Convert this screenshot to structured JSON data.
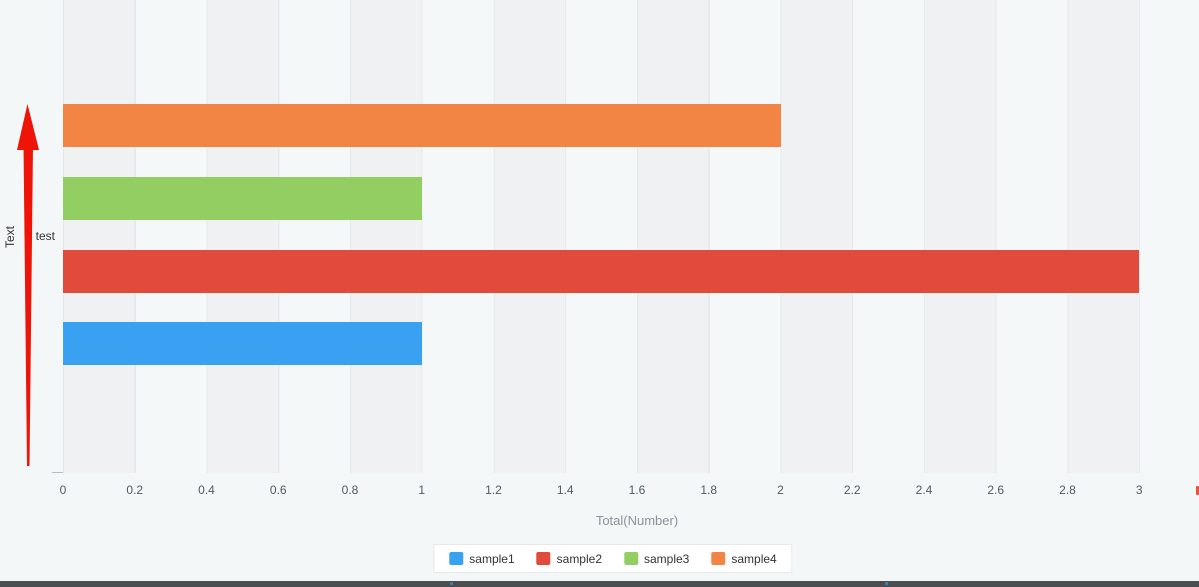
{
  "page": {
    "background_color": "#f4f7f8",
    "band_color": "#eff1f2",
    "bottom_strip_color": "#4b4e50"
  },
  "chart_data": {
    "type": "bar",
    "orientation": "horizontal",
    "title": "",
    "xlabel": "Total(Number)",
    "ylabel": "Text",
    "categories": [
      "test"
    ],
    "series": [
      {
        "name": "sample1",
        "value": 1,
        "color": "#38a1f1"
      },
      {
        "name": "sample2",
        "value": 3,
        "color": "#e14b3c"
      },
      {
        "name": "sample3",
        "value": 1,
        "color": "#92ce62"
      },
      {
        "name": "sample4",
        "value": 2,
        "color": "#f28544"
      }
    ],
    "xlim": [
      0,
      3.2
    ],
    "x_ticks": [
      "0",
      "0.2",
      "0.4",
      "0.6",
      "0.8",
      "1",
      "1.2",
      "1.4",
      "1.6",
      "1.8",
      "2",
      "2.2",
      "2.4",
      "2.6",
      "2.8",
      "3"
    ],
    "grid": "vertical-striped-bands",
    "legend_position": "bottom-center",
    "legend": [
      "sample1",
      "sample2",
      "sample3",
      "sample4"
    ]
  },
  "annotation": {
    "arrow_color": "#ee1408",
    "edge_fragment_color": "#e8543a"
  }
}
